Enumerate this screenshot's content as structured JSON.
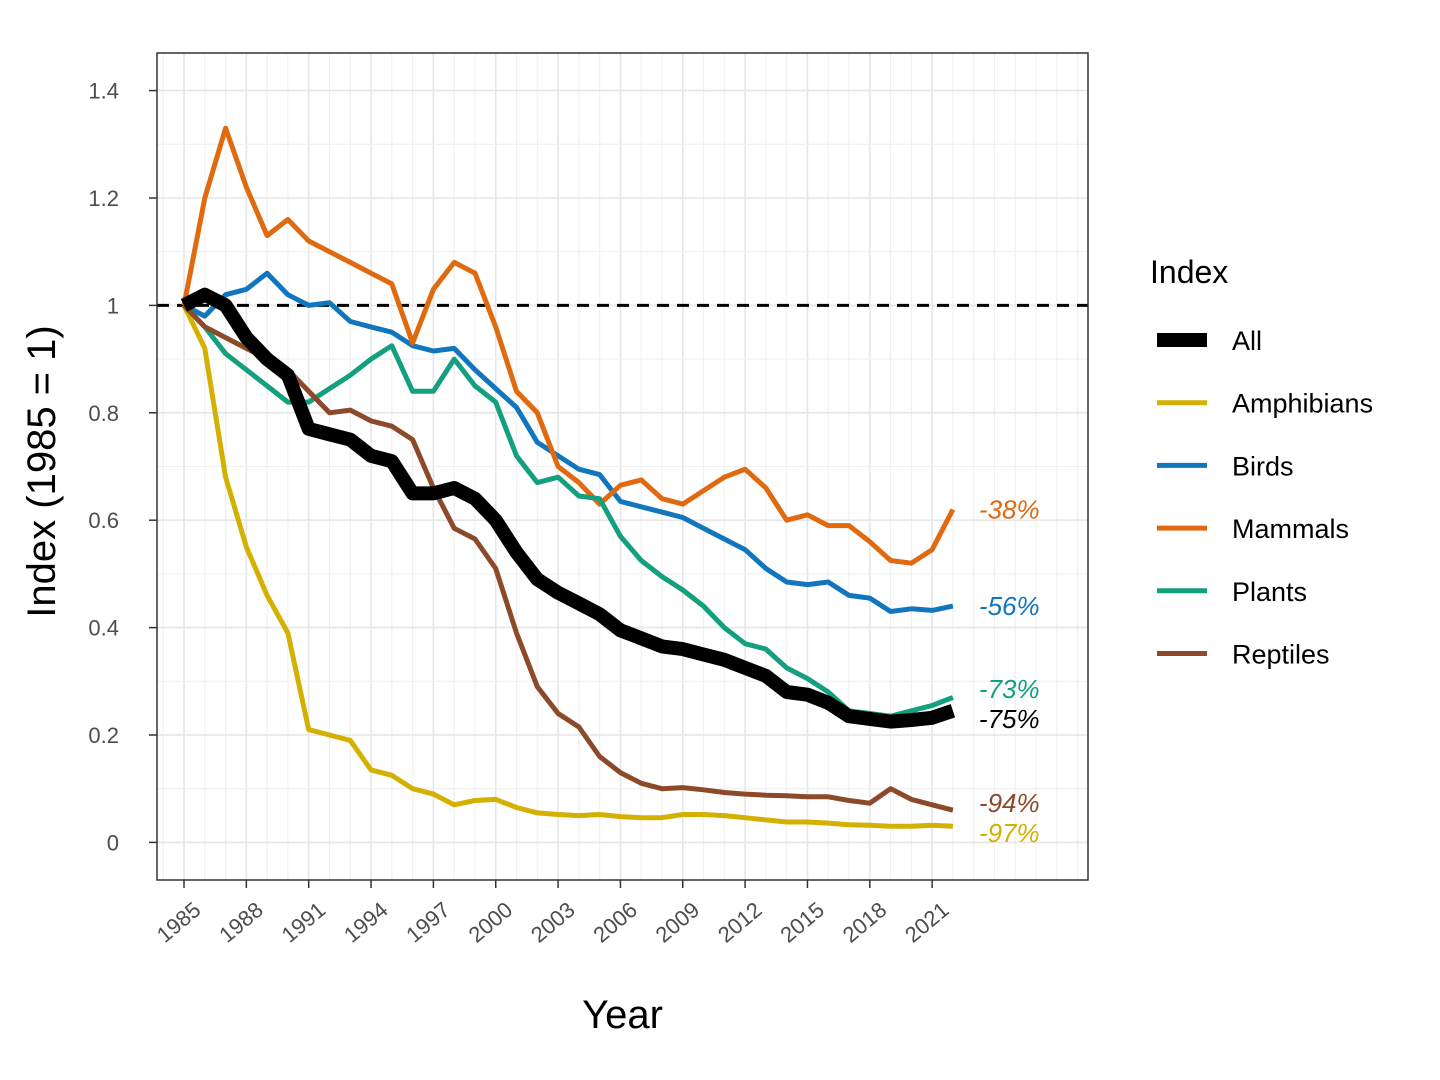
{
  "chart_data": {
    "type": "line",
    "xlabel": "Year",
    "ylabel": "Index (1985 = 1)",
    "xlim": [
      1983.7,
      2028.5
    ],
    "ylim": [
      -0.07,
      1.47
    ],
    "x_ticks": [
      1985,
      1988,
      1991,
      1994,
      1997,
      2000,
      2003,
      2006,
      2009,
      2012,
      2015,
      2018,
      2021
    ],
    "x_tick_labels": [
      "1985",
      "1988",
      "1991",
      "1994",
      "1997",
      "2000",
      "2003",
      "2006",
      "2009",
      "2012",
      "2015",
      "2018",
      "2021"
    ],
    "y_ticks": [
      0,
      0.2,
      0.4,
      0.6,
      0.8,
      1,
      1.2,
      1.4
    ],
    "y_tick_labels": [
      "0",
      "0.2",
      "0.4",
      "0.6",
      "0.8",
      "1",
      "1.2",
      "1.4"
    ],
    "reference_line": {
      "y": 1,
      "style": "dashed",
      "color": "#000000"
    },
    "grid": true,
    "legend": {
      "title": "Index",
      "position": "right"
    },
    "x": [
      1985,
      1986,
      1987,
      1988,
      1989,
      1990,
      1991,
      1992,
      1993,
      1994,
      1995,
      1996,
      1997,
      1998,
      1999,
      2000,
      2001,
      2002,
      2003,
      2004,
      2005,
      2006,
      2007,
      2008,
      2009,
      2010,
      2011,
      2012,
      2013,
      2014,
      2015,
      2016,
      2017,
      2018,
      2019,
      2020,
      2021,
      2022
    ],
    "series": [
      {
        "name": "All",
        "color": "#000000",
        "width": 14,
        "end_label": "-75%",
        "end_label_color": "#000000",
        "values": [
          1.0,
          1.02,
          1.0,
          0.94,
          0.9,
          0.87,
          0.77,
          0.76,
          0.75,
          0.72,
          0.71,
          0.65,
          0.65,
          0.66,
          0.64,
          0.6,
          0.54,
          0.49,
          0.465,
          0.445,
          0.425,
          0.395,
          0.38,
          0.365,
          0.36,
          0.35,
          0.34,
          0.325,
          0.31,
          0.28,
          0.275,
          0.26,
          0.235,
          0.23,
          0.225,
          0.228,
          0.232,
          0.245
        ]
      },
      {
        "name": "Amphibians",
        "color": "#D4B000",
        "width": 5,
        "end_label": "-97%",
        "end_label_color": "#D4B000",
        "values": [
          1.0,
          0.92,
          0.68,
          0.55,
          0.46,
          0.39,
          0.21,
          0.2,
          0.19,
          0.135,
          0.125,
          0.1,
          0.09,
          0.07,
          0.078,
          0.08,
          0.065,
          0.055,
          0.052,
          0.05,
          0.052,
          0.048,
          0.046,
          0.046,
          0.052,
          0.052,
          0.05,
          0.046,
          0.042,
          0.038,
          0.038,
          0.036,
          0.033,
          0.032,
          0.03,
          0.03,
          0.032,
          0.03
        ]
      },
      {
        "name": "Birds",
        "color": "#1276BE",
        "width": 5,
        "end_label": "-56%",
        "end_label_color": "#1276BE",
        "values": [
          1.0,
          0.98,
          1.02,
          1.03,
          1.06,
          1.02,
          1.0,
          1.005,
          0.97,
          0.96,
          0.95,
          0.925,
          0.915,
          0.92,
          0.88,
          0.845,
          0.81,
          0.745,
          0.72,
          0.695,
          0.685,
          0.635,
          0.625,
          0.615,
          0.605,
          0.585,
          0.565,
          0.545,
          0.51,
          0.485,
          0.48,
          0.485,
          0.46,
          0.455,
          0.43,
          0.435,
          0.432,
          0.44
        ]
      },
      {
        "name": "Mammals",
        "color": "#E06A10",
        "width": 5,
        "end_label": "-38%",
        "end_label_color": "#E06A10",
        "values": [
          1.0,
          1.2,
          1.33,
          1.22,
          1.13,
          1.16,
          1.12,
          1.1,
          1.08,
          1.06,
          1.04,
          0.93,
          1.03,
          1.08,
          1.06,
          0.96,
          0.84,
          0.8,
          0.7,
          0.67,
          0.63,
          0.665,
          0.675,
          0.64,
          0.63,
          0.655,
          0.68,
          0.695,
          0.66,
          0.6,
          0.61,
          0.59,
          0.59,
          0.56,
          0.525,
          0.52,
          0.545,
          0.62
        ]
      },
      {
        "name": "Plants",
        "color": "#14A07E",
        "width": 5,
        "end_label": "-73%",
        "end_label_color": "#14A07E",
        "values": [
          1.0,
          0.96,
          0.91,
          0.88,
          0.85,
          0.82,
          0.82,
          0.845,
          0.87,
          0.9,
          0.925,
          0.84,
          0.84,
          0.9,
          0.85,
          0.82,
          0.72,
          0.67,
          0.68,
          0.645,
          0.64,
          0.57,
          0.525,
          0.495,
          0.47,
          0.44,
          0.4,
          0.37,
          0.36,
          0.325,
          0.305,
          0.28,
          0.245,
          0.24,
          0.235,
          0.245,
          0.255,
          0.27
        ]
      },
      {
        "name": "Reptiles",
        "color": "#8C4A2A",
        "width": 5,
        "end_label": "-94%",
        "end_label_color": "#8C4A2A",
        "values": [
          1.0,
          0.96,
          0.94,
          0.92,
          0.9,
          0.88,
          0.84,
          0.8,
          0.805,
          0.785,
          0.775,
          0.75,
          0.66,
          0.585,
          0.565,
          0.51,
          0.39,
          0.29,
          0.24,
          0.215,
          0.16,
          0.13,
          0.11,
          0.1,
          0.102,
          0.098,
          0.093,
          0.09,
          0.088,
          0.087,
          0.085,
          0.085,
          0.078,
          0.073,
          0.1,
          0.08,
          0.07,
          0.06
        ]
      }
    ]
  }
}
